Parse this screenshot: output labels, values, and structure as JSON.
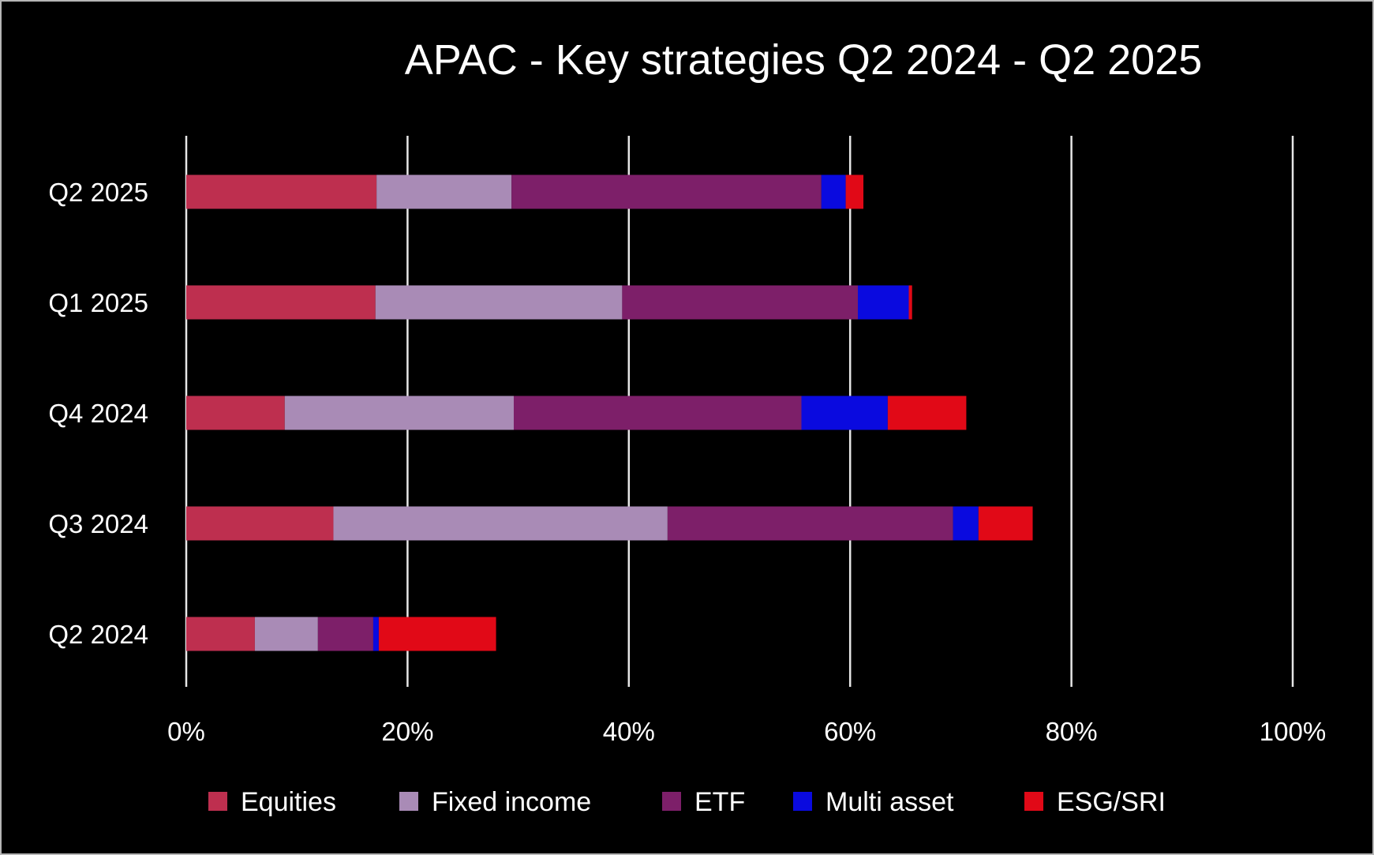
{
  "chart_data": {
    "type": "bar",
    "orientation": "horizontal",
    "stacked": true,
    "title": "APAC - Key strategies Q2 2024 - Q2 2025",
    "categories": [
      "Q2 2025",
      "Q1 2025",
      "Q4 2024",
      "Q3 2024",
      "Q2 2024"
    ],
    "xlim": [
      0,
      100
    ],
    "x_ticks": [
      "0%",
      "20%",
      "40%",
      "60%",
      "80%",
      "100%"
    ],
    "x_tick_values": [
      0,
      20,
      40,
      60,
      80,
      100
    ],
    "grid": "vertical",
    "legend_position": "bottom",
    "series": [
      {
        "name": "Equities",
        "color": "#be2f4f",
        "values": [
          17.2,
          17.1,
          8.9,
          13.3,
          6.2
        ]
      },
      {
        "name": "Fixed income",
        "color": "#a98bb6",
        "values": [
          12.2,
          22.3,
          20.7,
          30.2,
          5.7
        ]
      },
      {
        "name": "ETF",
        "color": "#7d1f69",
        "values": [
          28.0,
          21.3,
          26.0,
          25.8,
          5.0
        ]
      },
      {
        "name": "Multi asset",
        "color": "#0a0adf",
        "values": [
          2.2,
          4.6,
          7.8,
          2.3,
          0.5
        ]
      },
      {
        "name": "ESG/SRI",
        "color": "#e10917",
        "values": [
          1.6,
          0.3,
          7.1,
          4.9,
          10.6
        ]
      }
    ]
  }
}
